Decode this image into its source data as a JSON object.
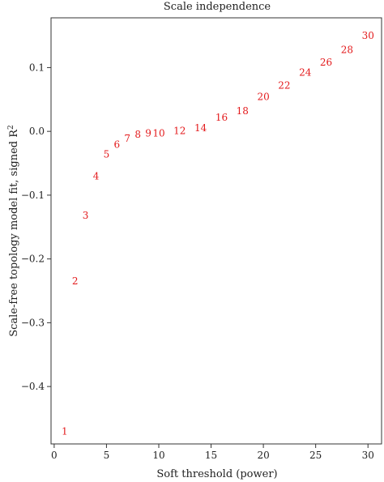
{
  "chart_data": {
    "type": "scatter",
    "title": "Scale independence",
    "xlabel": "Soft threshold (power)",
    "ylabel": "Scale-free topology model fit, signed R",
    "ylabel_superscript": "2",
    "xlim": [
      -0.3,
      31.3
    ],
    "ylim": [
      -0.49,
      0.178
    ],
    "x_ticks": [
      0,
      5,
      10,
      15,
      20,
      25,
      30
    ],
    "y_ticks": [
      -0.4,
      -0.3,
      -0.2,
      -0.1,
      0.0,
      0.1
    ],
    "y_tick_labels": [
      "−0.4",
      "−0.3",
      "−0.2",
      "−0.1",
      "0.0",
      "0.1"
    ],
    "point_color": "#e31a1c",
    "points": [
      {
        "x": 1,
        "y": -0.47,
        "label": "1"
      },
      {
        "x": 2,
        "y": -0.235,
        "label": "2"
      },
      {
        "x": 3,
        "y": -0.132,
        "label": "3"
      },
      {
        "x": 4,
        "y": -0.07,
        "label": "4"
      },
      {
        "x": 5,
        "y": -0.036,
        "label": "5"
      },
      {
        "x": 6,
        "y": -0.021,
        "label": "6"
      },
      {
        "x": 7,
        "y": -0.011,
        "label": "7"
      },
      {
        "x": 8,
        "y": -0.005,
        "label": "8"
      },
      {
        "x": 9,
        "y": -0.003,
        "label": "9"
      },
      {
        "x": 10,
        "y": -0.003,
        "label": "10"
      },
      {
        "x": 12,
        "y": 0.001,
        "label": "12"
      },
      {
        "x": 14,
        "y": 0.005,
        "label": "14"
      },
      {
        "x": 16,
        "y": 0.022,
        "label": "16"
      },
      {
        "x": 18,
        "y": 0.032,
        "label": "18"
      },
      {
        "x": 20,
        "y": 0.054,
        "label": "20"
      },
      {
        "x": 22,
        "y": 0.072,
        "label": "22"
      },
      {
        "x": 24,
        "y": 0.092,
        "label": "24"
      },
      {
        "x": 26,
        "y": 0.108,
        "label": "26"
      },
      {
        "x": 28,
        "y": 0.128,
        "label": "28"
      },
      {
        "x": 30,
        "y": 0.15,
        "label": "30"
      }
    ]
  }
}
